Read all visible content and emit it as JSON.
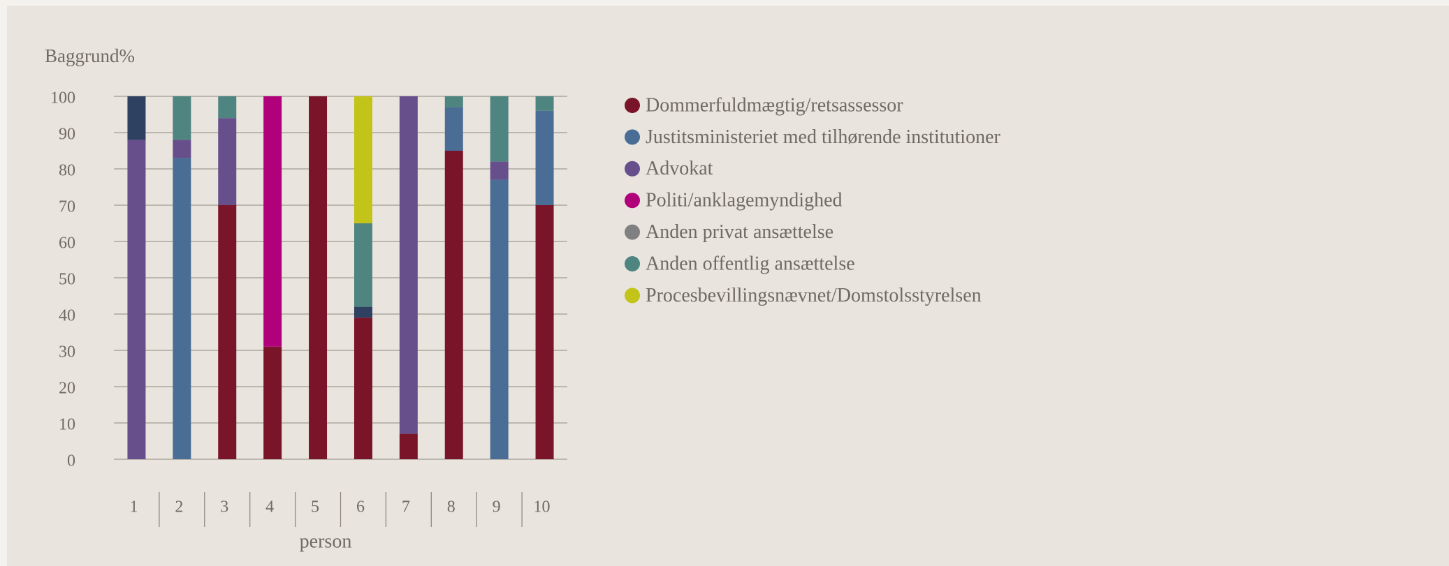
{
  "chart_data": {
    "type": "stacked_bar",
    "title": "Baggrund%",
    "xlabel": "person",
    "categories": [
      "1",
      "2",
      "3",
      "4",
      "5",
      "6",
      "7",
      "8",
      "9",
      "10"
    ],
    "series": [
      {
        "name": "Dommerfuldmægtig/retsassessor",
        "color": "#7a1428",
        "values": [
          0,
          0,
          70,
          31,
          100,
          39,
          7,
          85,
          0,
          70
        ]
      },
      {
        "name": "Justitsministeriet med tilhørende institutioner",
        "color": "#4a6d96",
        "values": [
          0,
          83,
          0,
          0,
          0,
          0,
          0,
          12,
          77,
          26
        ]
      },
      {
        "name": "Advokat",
        "color": "#674f8c",
        "values": [
          88,
          5,
          24,
          0,
          0,
          0,
          93,
          0,
          5,
          0
        ]
      },
      {
        "name": "Politi/anklagemyndighed",
        "color": "#b0007a",
        "values": [
          0,
          0,
          0,
          69,
          0,
          0,
          0,
          0,
          0,
          0
        ]
      },
      {
        "name": "Anden privat ansættelse",
        "color": "#2e4160",
        "legend_color": "#808080",
        "values": [
          12,
          0,
          0,
          0,
          0,
          3,
          0,
          0,
          0,
          0
        ]
      },
      {
        "name": "Anden offentlig ansættelse",
        "color": "#4e8580",
        "values": [
          0,
          12,
          6,
          0,
          0,
          23,
          0,
          3,
          18,
          4
        ]
      },
      {
        "name": "Procesbevillingsnævnet/Domstolsstyrelsen",
        "color": "#c2c41a",
        "values": [
          0,
          0,
          0,
          0,
          0,
          35,
          0,
          0,
          0,
          0
        ]
      }
    ],
    "ylim": [
      0,
      100
    ],
    "yticks": [
      0,
      10,
      20,
      30,
      40,
      50,
      60,
      70,
      80,
      90,
      100
    ],
    "grid": true
  }
}
